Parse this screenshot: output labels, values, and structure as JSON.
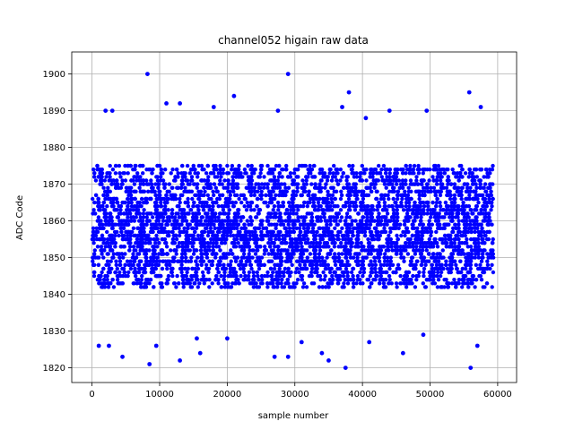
{
  "chart_data": {
    "type": "scatter",
    "title": "channel052 higain raw data",
    "xlabel": "sample number",
    "ylabel": "ADC Code",
    "xlim": [
      -3000,
      62800
    ],
    "ylim": [
      1816,
      1906
    ],
    "xticks": [
      0,
      10000,
      20000,
      30000,
      40000,
      50000,
      60000
    ],
    "yticks": [
      1820,
      1830,
      1840,
      1850,
      1860,
      1870,
      1880,
      1890,
      1900
    ],
    "grid": true,
    "marker_color": "#0000ff",
    "series": [
      {
        "name": "",
        "x_range": [
          0,
          59400
        ],
        "typical_range": [
          1842,
          1875
        ],
        "band_range": [
          1836,
          1880
        ],
        "outliers": [
          [
            8200,
            1900
          ],
          [
            29000,
            1900
          ],
          [
            55800,
            1895
          ],
          [
            38000,
            1895
          ],
          [
            21000,
            1894
          ],
          [
            11000,
            1892
          ],
          [
            13000,
            1892
          ],
          [
            57500,
            1891
          ],
          [
            37000,
            1891
          ],
          [
            18000,
            1891
          ],
          [
            27500,
            1890
          ],
          [
            49500,
            1890
          ],
          [
            2000,
            1890
          ],
          [
            3000,
            1890
          ],
          [
            40500,
            1888
          ],
          [
            44000,
            1890
          ],
          [
            8500,
            1821
          ],
          [
            13000,
            1822
          ],
          [
            37500,
            1820
          ],
          [
            56000,
            1820
          ],
          [
            35000,
            1822
          ],
          [
            4500,
            1823
          ],
          [
            27000,
            1823
          ],
          [
            29000,
            1823
          ],
          [
            34000,
            1824
          ],
          [
            46000,
            1824
          ],
          [
            16000,
            1824
          ],
          [
            1000,
            1826
          ],
          [
            2500,
            1826
          ],
          [
            9500,
            1826
          ],
          [
            15500,
            1828
          ],
          [
            31000,
            1827
          ],
          [
            41000,
            1827
          ],
          [
            49000,
            1829
          ],
          [
            57000,
            1826
          ],
          [
            20000,
            1828
          ]
        ]
      }
    ]
  }
}
